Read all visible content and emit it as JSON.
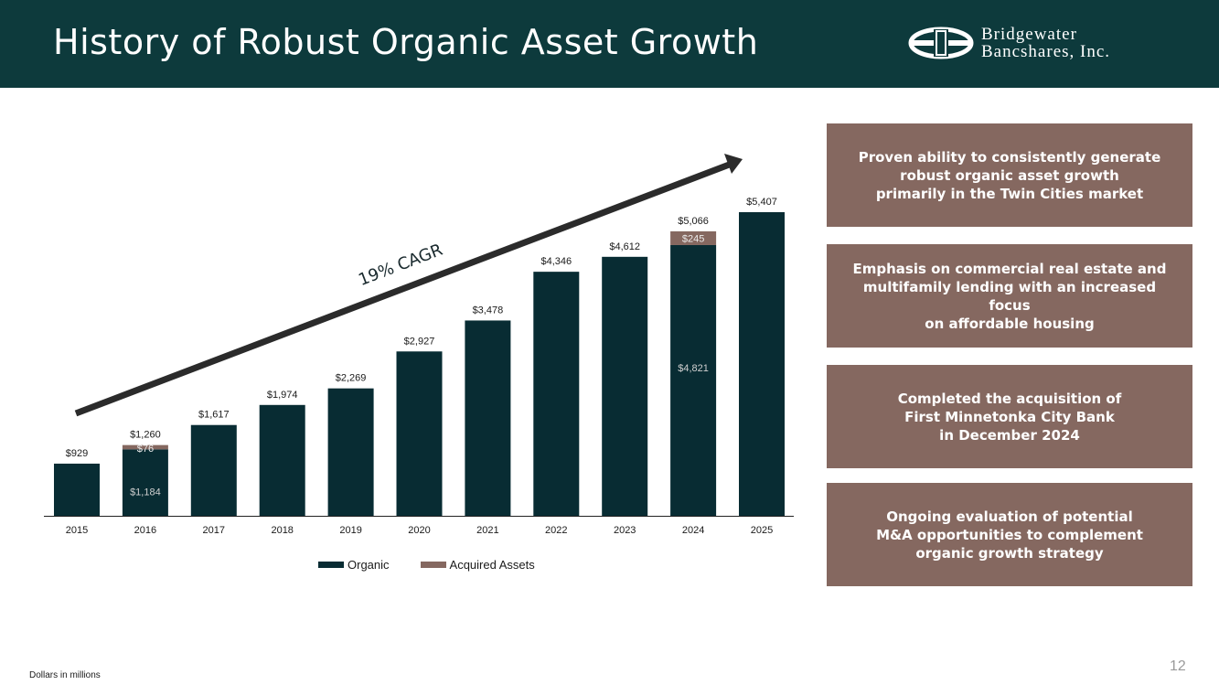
{
  "header": {
    "title": "History of Robust Organic Asset Growth",
    "logo": {
      "line1": "Bridgewater",
      "line2": "Bancshares, Inc."
    }
  },
  "colors": {
    "header_bg": "#0d3a3c",
    "organic": "#082c33",
    "acquired": "#856860",
    "callout_bg": "#856860"
  },
  "chart_data": {
    "type": "bar",
    "stacked": true,
    "categories": [
      "2015",
      "2016",
      "2017",
      "2018",
      "2019",
      "2020",
      "2021",
      "2022",
      "2023",
      "2024",
      "2025"
    ],
    "series": [
      {
        "name": "Organic",
        "values": [
          929,
          1184,
          1617,
          1974,
          2269,
          2927,
          3478,
          4346,
          4612,
          4821,
          5407
        ]
      },
      {
        "name": "Acquired Assets",
        "values": [
          0,
          76,
          0,
          0,
          0,
          0,
          0,
          0,
          0,
          245,
          0
        ]
      }
    ],
    "total_labels": [
      "$929",
      "$1,260",
      "$1,617",
      "$1,974",
      "$2,269",
      "$2,927",
      "$3,478",
      "$4,346",
      "$4,612",
      "$5,066",
      "$5,407"
    ],
    "segment_labels": [
      {
        "index": 1,
        "organic": "$1,184",
        "acquired": "$76"
      },
      {
        "index": 9,
        "organic": "$4,821",
        "acquired": "$245"
      }
    ],
    "annotation": "19% CAGR",
    "ylim": [
      0,
      6000
    ],
    "legend_position": "bottom"
  },
  "callouts": [
    "Proven ability to consistently generate\nrobust organic asset growth\nprimarily in the Twin Cities market",
    "Emphasis on commercial real estate and\nmultifamily lending with an increased focus\non affordable housing",
    "Completed the acquisition of\nFirst Minnetonka City Bank\nin December 2024",
    "Ongoing evaluation of potential\nM&A opportunities to complement\norganic growth strategy"
  ],
  "footnote": "Dollars in millions",
  "page_number": "12"
}
